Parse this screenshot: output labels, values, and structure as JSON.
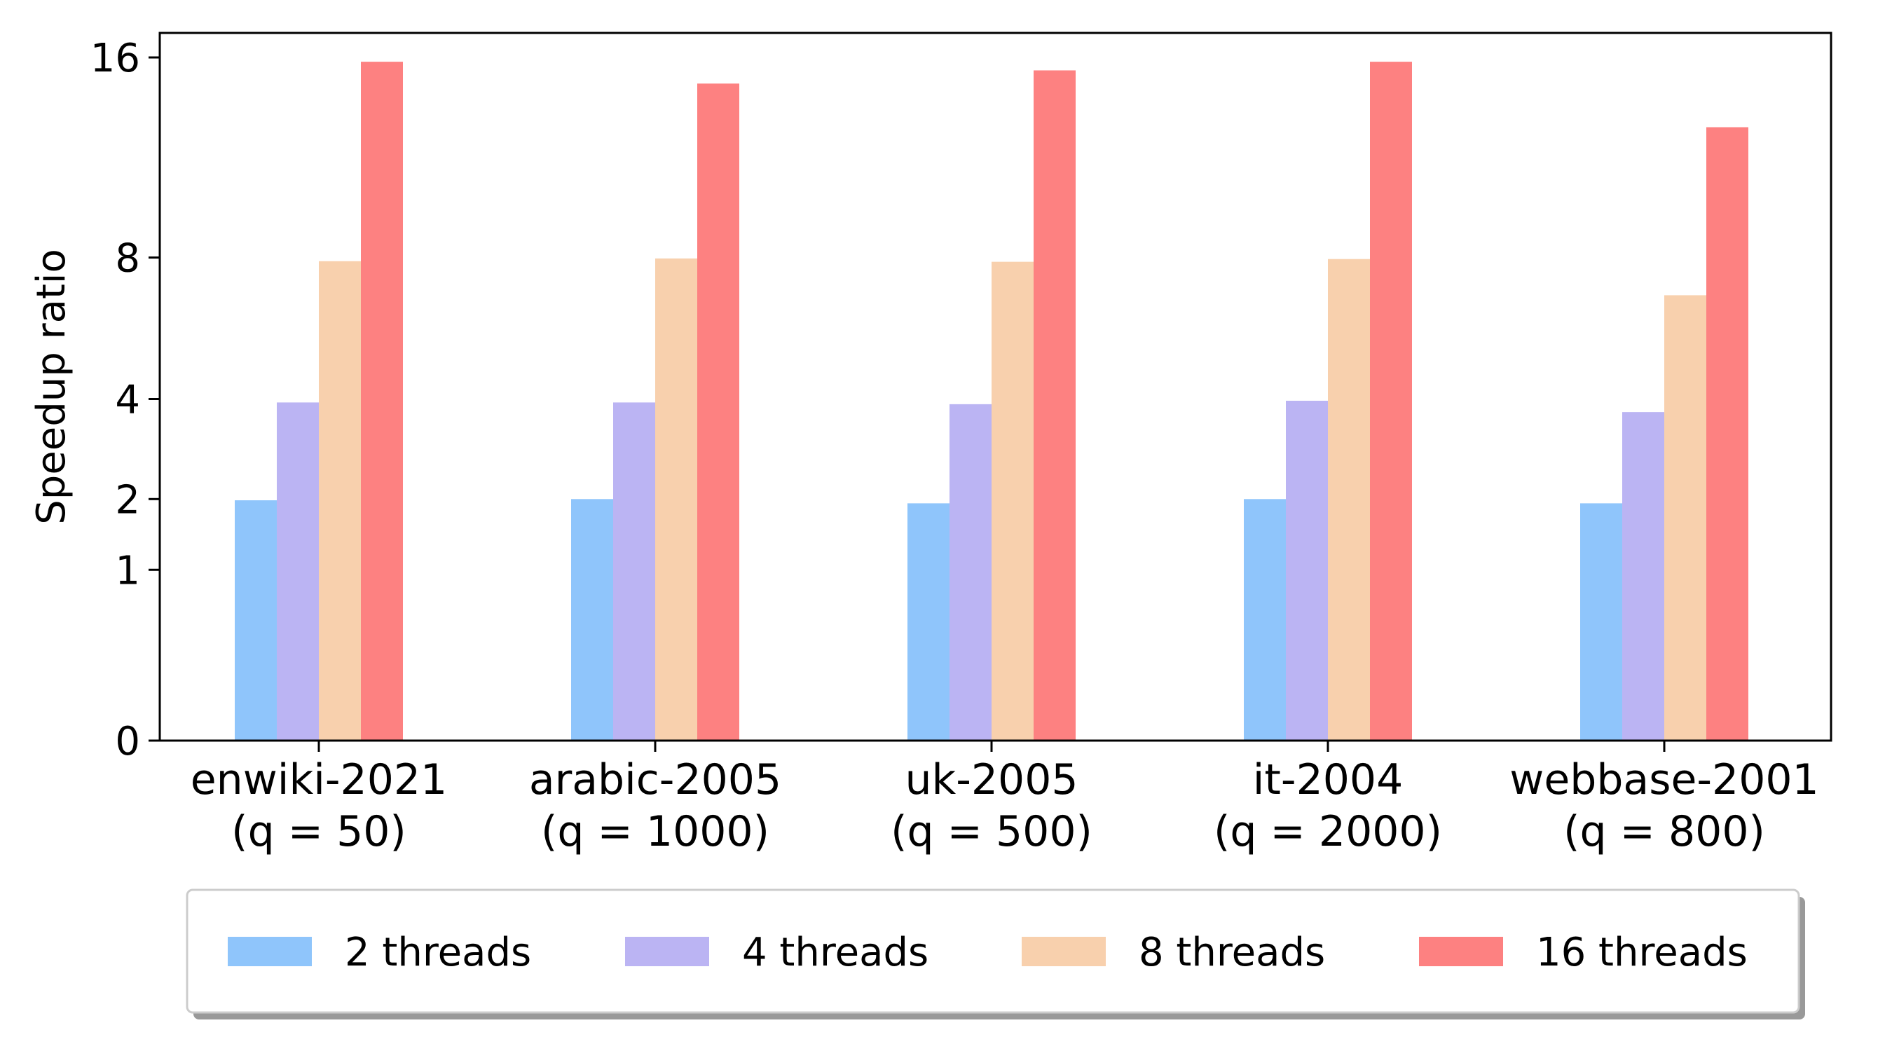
{
  "chart_data": {
    "type": "bar",
    "scale": "sqrt",
    "ylabel": "Speedup ratio",
    "xlabel": "",
    "ylim": [
      0,
      16
    ],
    "yticks": [
      "0",
      "1",
      "2",
      "4",
      "8",
      "16"
    ],
    "categories": [
      {
        "name": "enwiki-2021",
        "param": "(q = 50)"
      },
      {
        "name": "arabic-2005",
        "param": "(q = 1000)"
      },
      {
        "name": "uk-2005",
        "param": "(q = 500)"
      },
      {
        "name": "it-2004",
        "param": "(q = 2000)"
      },
      {
        "name": "webbase-2001",
        "param": "(q = 800)"
      }
    ],
    "series": [
      {
        "name": "2 threads",
        "color": "#8fc5fb",
        "values": [
          1.98,
          2.0,
          1.93,
          2.0,
          1.93
        ]
      },
      {
        "name": "4 threads",
        "color": "#bbb4f3",
        "values": [
          3.92,
          3.92,
          3.88,
          3.96,
          3.7
        ]
      },
      {
        "name": "8 threads",
        "color": "#f8d0ad",
        "values": [
          7.88,
          7.97,
          7.86,
          7.95,
          6.8
        ]
      },
      {
        "name": "16 threads",
        "color": "#fd8181",
        "values": [
          15.8,
          14.8,
          15.4,
          15.8,
          12.9
        ]
      }
    ],
    "legend_position": "bottom",
    "grid": false
  }
}
